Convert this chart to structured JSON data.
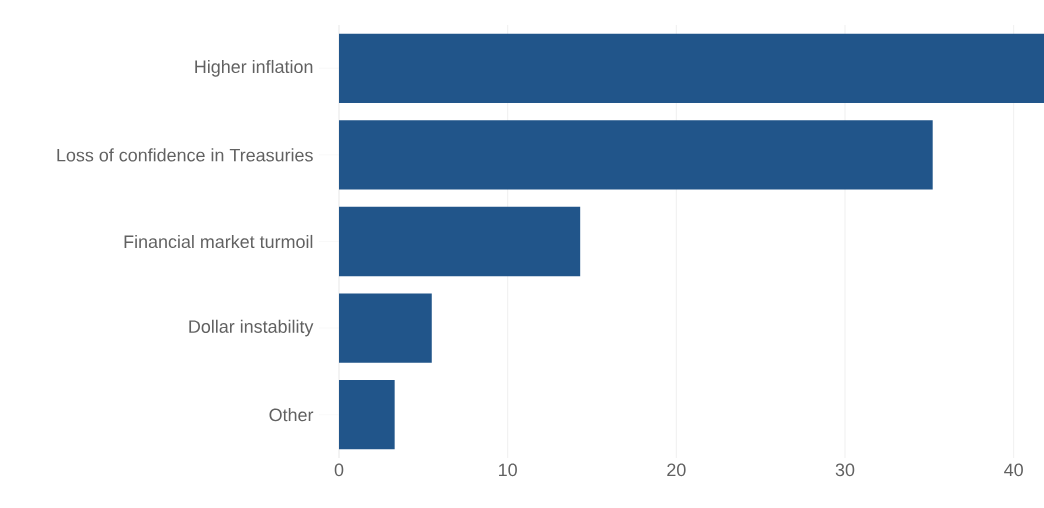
{
  "chart_data": {
    "type": "bar",
    "orientation": "horizontal",
    "categories": [
      "Higher inflation",
      "Loss of confidence in Treasuries",
      "Financial market turmoil",
      "Dollar instability",
      "Other"
    ],
    "values": [
      41.8,
      35.2,
      14.3,
      5.5,
      3.3
    ],
    "color": "#21558a",
    "xlim": [
      0,
      41.8
    ],
    "xticks": [
      0,
      10,
      20,
      30,
      40
    ],
    "grid": "x"
  }
}
